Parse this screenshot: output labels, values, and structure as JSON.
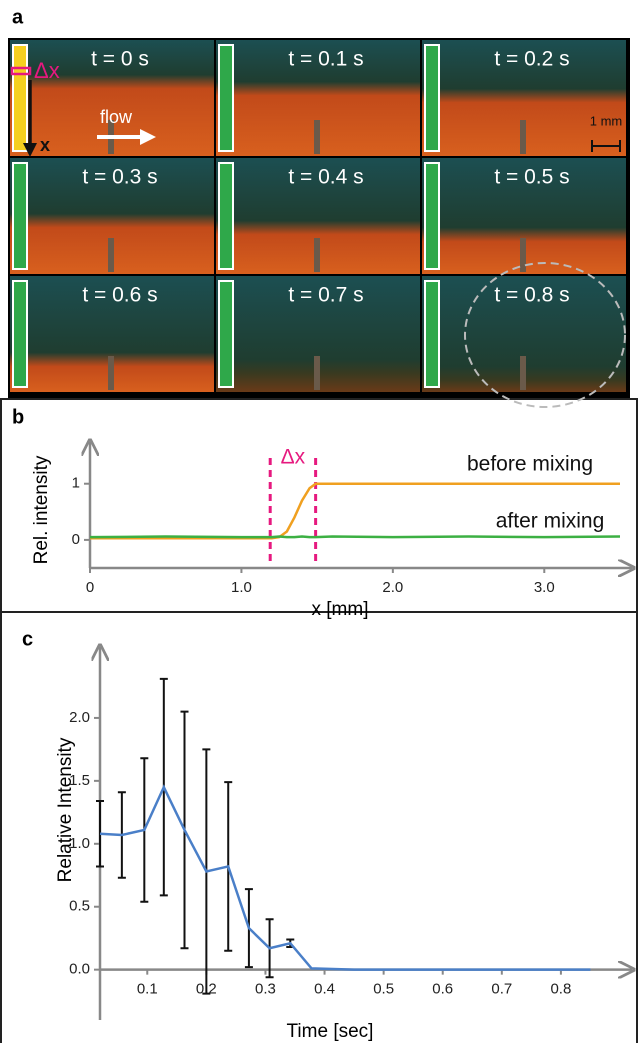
{
  "panel_a": {
    "label": "a",
    "frames": [
      "t = 0 s",
      "t = 0.1 s",
      "t = 0.2 s",
      "t = 0.3 s",
      "t = 0.4 s",
      "t = 0.5 s",
      "t = 0.6 s",
      "t = 0.7 s",
      "t = 0.8 s"
    ],
    "flow_label": "flow",
    "axis_label": "x",
    "delta_label": "Δx",
    "scale_label": "1 mm"
  },
  "chart_data": [
    {
      "type": "line",
      "label": "b",
      "x_label": "x [mm]",
      "y_label": "Rel. intensity",
      "x": [
        0,
        0.5,
        1.0,
        1.2,
        1.25,
        1.3,
        1.35,
        1.4,
        1.45,
        1.49,
        1.6,
        2.0,
        2.5,
        3.0,
        3.5
      ],
      "series": [
        {
          "name": "before mixing",
          "color": "#f0a020",
          "values": [
            0.03,
            0.03,
            0.03,
            0.03,
            0.05,
            0.15,
            0.4,
            0.7,
            0.92,
            1.0,
            1.0,
            1.0,
            1.0,
            1.0,
            1.0
          ]
        },
        {
          "name": "after mixing",
          "color": "#3cb043",
          "values": [
            0.05,
            0.06,
            0.05,
            0.05,
            0.06,
            0.05,
            0.05,
            0.06,
            0.05,
            0.05,
            0.06,
            0.05,
            0.06,
            0.05,
            0.06
          ]
        }
      ],
      "delta_x": [
        1.19,
        1.49
      ],
      "delta_label": "Δx",
      "delta_color": "#e6197f",
      "xlim": [
        0,
        3.5
      ],
      "xticks": [
        0,
        {
          "value": 1,
          "label": "1.0"
        },
        {
          "value": 2,
          "label": "2.0"
        },
        {
          "value": 3,
          "label": "3.0"
        }
      ],
      "ylim": [
        -0.5,
        1.6
      ],
      "yticks": [
        0,
        1
      ]
    },
    {
      "type": "line",
      "label": "c",
      "x_label": "Time [sec]",
      "y_label": "Relative Intensity",
      "x": [
        0.02,
        0.057,
        0.095,
        0.128,
        0.163,
        0.2,
        0.237,
        0.272,
        0.307,
        0.342,
        0.378,
        0.45,
        0.55,
        0.65,
        0.75,
        0.85
      ],
      "series": [
        {
          "color": "#4a7fc8",
          "values": [
            1.08,
            1.07,
            1.11,
            1.45,
            1.11,
            0.78,
            0.82,
            0.33,
            0.17,
            0.21,
            0.01,
            0,
            0,
            0,
            0,
            0
          ],
          "errors": [
            0.26,
            0.34,
            0.57,
            0.86,
            0.94,
            0.97,
            0.67,
            0.31,
            0.23,
            0.03,
            null,
            null,
            null,
            null,
            null,
            null
          ]
        }
      ],
      "xlim": [
        0.02,
        0.9
      ],
      "xticks": [
        0.1,
        0.2,
        0.3,
        0.4,
        0.5,
        0.6,
        0.7,
        0.8
      ],
      "ylim": [
        -0.4,
        2.5
      ],
      "yticks": [
        {
          "value": 0,
          "label": "0.0"
        },
        0.5,
        {
          "value": 1,
          "label": "1.0"
        },
        1.5,
        {
          "value": 2,
          "label": "2.0"
        }
      ]
    }
  ]
}
